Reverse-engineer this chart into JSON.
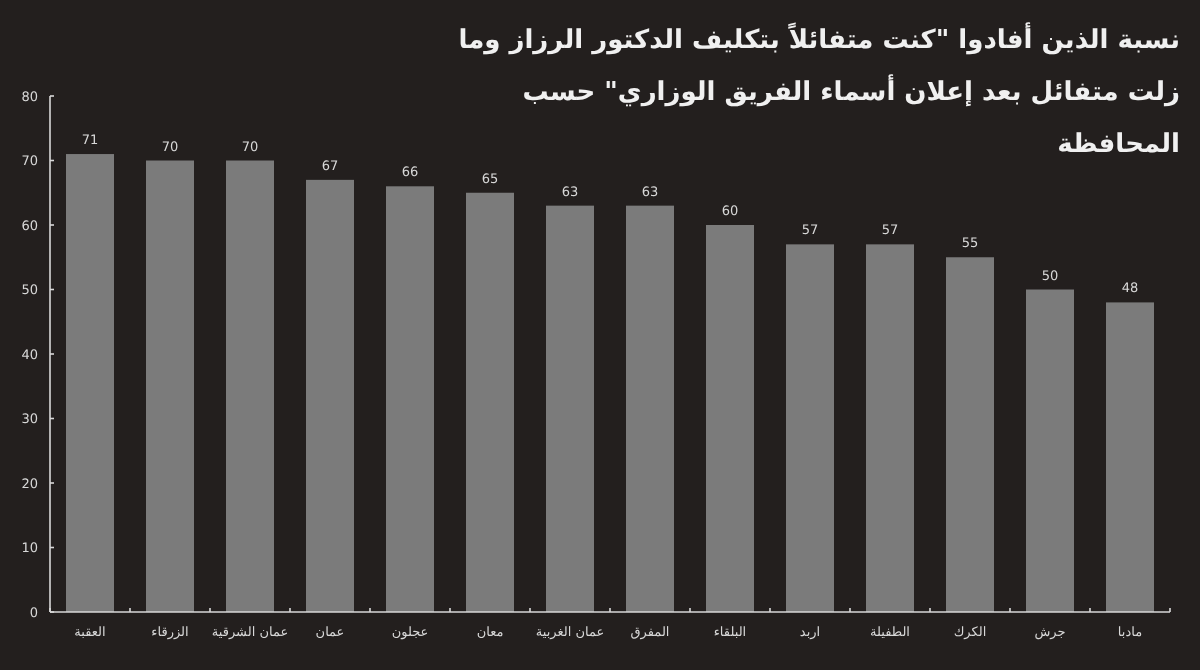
{
  "chart_data": {
    "type": "bar",
    "title": "نسبة الذين أفادوا \"كنت متفائلاً بتكليف الدكتور الرزاز وما زلت متفائل بعد إعلان أسماء الفريق الوزاري\" حسب المحافظة",
    "categories": [
      "العقبة",
      "الزرقاء",
      "عمان الشرقية",
      "عمان",
      "عجلون",
      "معان",
      "عمان الغربية",
      "المفرق",
      "البلقاء",
      "اربد",
      "الطفيلة",
      "الكرك",
      "جرش",
      "مادبا"
    ],
    "values": [
      71,
      70,
      70,
      67,
      66,
      65,
      63,
      63,
      60,
      57,
      57,
      55,
      50,
      48
    ],
    "color": "#7b7b7b",
    "ylim": [
      0,
      80
    ],
    "yticks": [
      0,
      10,
      20,
      30,
      40,
      50,
      60,
      70,
      80
    ],
    "grid": false,
    "data_labels": true
  }
}
